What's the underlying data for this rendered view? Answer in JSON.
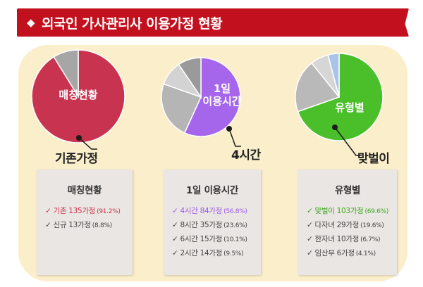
{
  "title": "외국인 가사관리사 이용가정 현황",
  "chart_data": [
    {
      "type": "pie",
      "title": "매칭현황",
      "pie_label": "매칭현황",
      "callout": "기존가정",
      "slices": [
        {
          "label": "기존",
          "count": "135가정",
          "percent": 91.2,
          "pct_text": "(91.2%)",
          "color": "#c8344f"
        },
        {
          "label": "신규",
          "count": "13가정",
          "percent": 8.8,
          "pct_text": "(8.8%)",
          "color": "#a6a6a6"
        }
      ],
      "highlight_color": "#c8344f"
    },
    {
      "type": "pie",
      "title": "1일 이용시간",
      "pie_label_lines": [
        "1일",
        "이용시간"
      ],
      "callout": "4시간",
      "slices": [
        {
          "label": "4시간",
          "count": "84가정",
          "percent": 56.8,
          "pct_text": "(56.8%)",
          "color": "#a566ec"
        },
        {
          "label": "8시간",
          "count": "35가정",
          "percent": 23.6,
          "pct_text": "(23.6%)",
          "color": "#b5b5b5"
        },
        {
          "label": "6시간",
          "count": "15가정",
          "percent": 10.1,
          "pct_text": "(10.1%)",
          "color": "#d3d3d3"
        },
        {
          "label": "2시간",
          "count": "14가정",
          "percent": 9.5,
          "pct_text": "(9.5%)",
          "color": "#9a9a9a"
        }
      ],
      "highlight_color": "#9b59e6"
    },
    {
      "type": "pie",
      "title": "유형별",
      "pie_label": "유형별",
      "callout": "맞벌이",
      "slices": [
        {
          "label": "맞벌이",
          "count": "103가정",
          "percent": 69.6,
          "pct_text": "(69.6%)",
          "color": "#4bbf2a"
        },
        {
          "label": "다자녀",
          "count": "29가정",
          "percent": 19.6,
          "pct_text": "(19.6%)",
          "color": "#b9b9b9"
        },
        {
          "label": "한자녀",
          "count": "10가정",
          "percent": 6.7,
          "pct_text": "(6.7%)",
          "color": "#d6d6d6"
        },
        {
          "label": "임산부",
          "count": "6가정",
          "percent": 4.1,
          "pct_text": "(4.1%)",
          "color": "#a9c4e8"
        }
      ],
      "highlight_color": "#3aa61c"
    }
  ],
  "check_glyph": "✓"
}
